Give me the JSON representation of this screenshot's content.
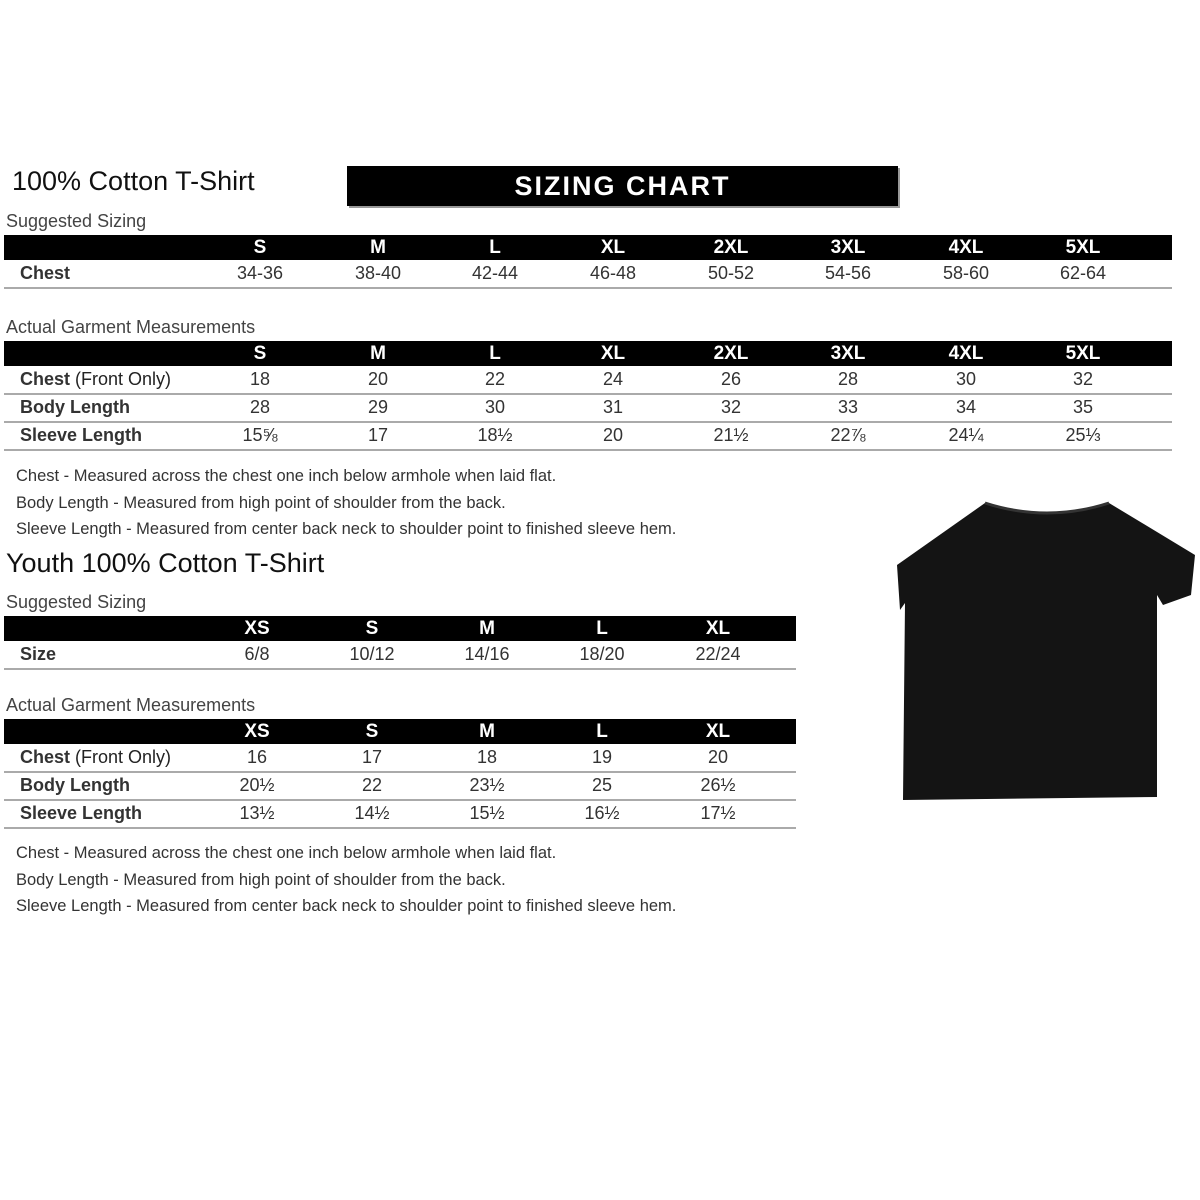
{
  "adult": {
    "title": "100% Cotton T-Shirt",
    "banner": "SIZING CHART",
    "suggested_label": "Suggested Sizing",
    "sizes": [
      "S",
      "M",
      "L",
      "XL",
      "2XL",
      "3XL",
      "4XL",
      "5XL"
    ],
    "suggested_rows": [
      {
        "label": "Chest",
        "values": [
          "34-36",
          "38-40",
          "42-44",
          "46-48",
          "50-52",
          "54-56",
          "58-60",
          "62-64"
        ]
      }
    ],
    "actual_label": "Actual Garment Measurements",
    "actual_rows": [
      {
        "label": "Chest",
        "label_extra": " (Front Only)",
        "values": [
          "18",
          "20",
          "22",
          "24",
          "26",
          "28",
          "30",
          "32"
        ]
      },
      {
        "label": "Body Length",
        "label_extra": "",
        "values": [
          "28",
          "29",
          "30",
          "31",
          "32",
          "33",
          "34",
          "35"
        ]
      },
      {
        "label": "Sleeve Length",
        "label_extra": "",
        "values": [
          "15⅝",
          "17",
          "18½",
          "20",
          "21½",
          "22⅞",
          "24¼",
          "25⅓"
        ]
      }
    ],
    "notes": [
      "Chest - Measured across the chest one inch below armhole when laid flat.",
      "Body Length - Measured from high point of shoulder from the back.",
      "Sleeve Length - Measured from center back neck to shoulder point to finished sleeve hem."
    ]
  },
  "youth": {
    "title": "Youth 100% Cotton T-Shirt",
    "suggested_label": "Suggested Sizing",
    "sizes": [
      "XS",
      "S",
      "M",
      "L",
      "XL"
    ],
    "suggested_rows": [
      {
        "label": "Size",
        "values": [
          "6/8",
          "10/12",
          "14/16",
          "18/20",
          "22/24"
        ]
      }
    ],
    "actual_label": "Actual Garment Measurements",
    "actual_rows": [
      {
        "label": "Chest",
        "label_extra": " (Front Only)",
        "values": [
          "16",
          "17",
          "18",
          "19",
          "20"
        ]
      },
      {
        "label": "Body Length",
        "label_extra": "",
        "values": [
          "20½",
          "22",
          "23½",
          "25",
          "26½"
        ]
      },
      {
        "label": "Sleeve Length",
        "label_extra": "",
        "values": [
          "13½",
          "14½",
          "15½",
          "16½",
          "17½"
        ]
      }
    ],
    "notes": [
      "Chest - Measured across the chest one inch below armhole when laid flat.",
      "Body Length - Measured from high point of shoulder from the back.",
      "Sleeve Length - Measured from center back neck to shoulder point to finished sleeve hem."
    ]
  },
  "tshirt_color": "#141414"
}
